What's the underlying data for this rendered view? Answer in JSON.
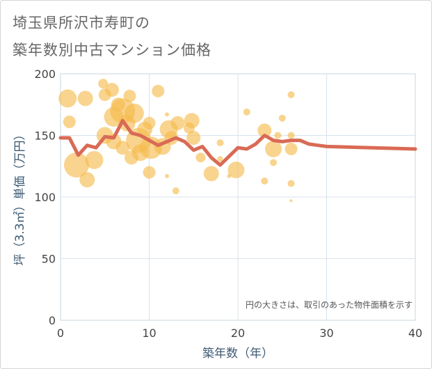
{
  "title_line1": "埼玉県所沢市寿町の",
  "title_line2": "築年数別中古マンション価格",
  "chart_data": {
    "type": "scatter",
    "xlabel": "築年数（年）",
    "ylabel": "坪（3.3㎡）単価（万円）",
    "xlim": [
      0,
      40
    ],
    "ylim": [
      0,
      200
    ],
    "xticks": [
      "0",
      "10",
      "20",
      "30",
      "40"
    ],
    "yticks": [
      "0",
      "50",
      "100",
      "150",
      "200"
    ],
    "grid": true,
    "note": "円の大きさは、取引のあった物件面積を示す",
    "bubbles": [
      {
        "x": 0.8,
        "y": 180,
        "r": 13
      },
      {
        "x": 1,
        "y": 161,
        "r": 9
      },
      {
        "x": 1.8,
        "y": 126,
        "r": 18
      },
      {
        "x": 2.8,
        "y": 180,
        "r": 11
      },
      {
        "x": 3,
        "y": 114,
        "r": 11
      },
      {
        "x": 3.8,
        "y": 130,
        "r": 13
      },
      {
        "x": 4.8,
        "y": 192,
        "r": 7
      },
      {
        "x": 5,
        "y": 183,
        "r": 9
      },
      {
        "x": 5,
        "y": 150,
        "r": 12
      },
      {
        "x": 5.8,
        "y": 187,
        "r": 10
      },
      {
        "x": 6,
        "y": 165,
        "r": 14
      },
      {
        "x": 6,
        "y": 145,
        "r": 11
      },
      {
        "x": 6.5,
        "y": 175,
        "r": 10
      },
      {
        "x": 7,
        "y": 170,
        "r": 18
      },
      {
        "x": 7,
        "y": 140,
        "r": 10
      },
      {
        "x": 7.5,
        "y": 160,
        "r": 12
      },
      {
        "x": 7.8,
        "y": 182,
        "r": 9
      },
      {
        "x": 8,
        "y": 132,
        "r": 10
      },
      {
        "x": 8.3,
        "y": 168,
        "r": 14
      },
      {
        "x": 8.8,
        "y": 146,
        "r": 18
      },
      {
        "x": 9,
        "y": 136,
        "r": 12
      },
      {
        "x": 9.5,
        "y": 155,
        "r": 11
      },
      {
        "x": 10,
        "y": 160,
        "r": 9
      },
      {
        "x": 10,
        "y": 120,
        "r": 9
      },
      {
        "x": 10.2,
        "y": 140,
        "r": 16
      },
      {
        "x": 11,
        "y": 186,
        "r": 9
      },
      {
        "x": 11.5,
        "y": 141,
        "r": 12
      },
      {
        "x": 12,
        "y": 167,
        "r": 3
      },
      {
        "x": 12,
        "y": 117,
        "r": 3
      },
      {
        "x": 12.2,
        "y": 155,
        "r": 13
      },
      {
        "x": 12.5,
        "y": 148,
        "r": 10
      },
      {
        "x": 13,
        "y": 105,
        "r": 5
      },
      {
        "x": 13.2,
        "y": 160,
        "r": 10
      },
      {
        "x": 14.5,
        "y": 156,
        "r": 8
      },
      {
        "x": 14.8,
        "y": 162,
        "r": 11
      },
      {
        "x": 15,
        "y": 148,
        "r": 10
      },
      {
        "x": 15.8,
        "y": 132,
        "r": 7
      },
      {
        "x": 17,
        "y": 119,
        "r": 11
      },
      {
        "x": 18,
        "y": 144,
        "r": 5
      },
      {
        "x": 18,
        "y": 131,
        "r": 4
      },
      {
        "x": 19,
        "y": 117,
        "r": 3
      },
      {
        "x": 19.8,
        "y": 122,
        "r": 12
      },
      {
        "x": 21,
        "y": 169,
        "r": 5
      },
      {
        "x": 23,
        "y": 154,
        "r": 10
      },
      {
        "x": 23,
        "y": 113,
        "r": 5
      },
      {
        "x": 24,
        "y": 139,
        "r": 12
      },
      {
        "x": 24,
        "y": 128,
        "r": 5
      },
      {
        "x": 24.5,
        "y": 150,
        "r": 5
      },
      {
        "x": 25,
        "y": 164,
        "r": 5
      },
      {
        "x": 26,
        "y": 183,
        "r": 5
      },
      {
        "x": 26,
        "y": 150,
        "r": 5
      },
      {
        "x": 26,
        "y": 139,
        "r": 9
      },
      {
        "x": 26,
        "y": 111,
        "r": 5
      },
      {
        "x": 26,
        "y": 97,
        "r": 2
      }
    ],
    "series": [
      {
        "x": [
          0,
          1,
          2,
          3,
          4,
          5,
          6,
          7,
          8,
          9,
          10,
          11,
          12,
          13,
          14,
          15,
          16,
          17,
          18,
          19,
          20,
          21,
          22,
          23,
          24,
          25,
          26,
          27,
          28,
          29,
          30,
          40
        ],
        "values": [
          148,
          148,
          134,
          142,
          140,
          149,
          148,
          162,
          152,
          150,
          146,
          142,
          145,
          148,
          145,
          138,
          141,
          132,
          126,
          133,
          140,
          139,
          143,
          150,
          146,
          145,
          146,
          146,
          143,
          142,
          141,
          139
        ]
      }
    ]
  },
  "colors": {
    "bubble": "#f5b94a",
    "line": "#d96a55",
    "grid": "#d7e3ec",
    "border": "#c8d4de"
  }
}
